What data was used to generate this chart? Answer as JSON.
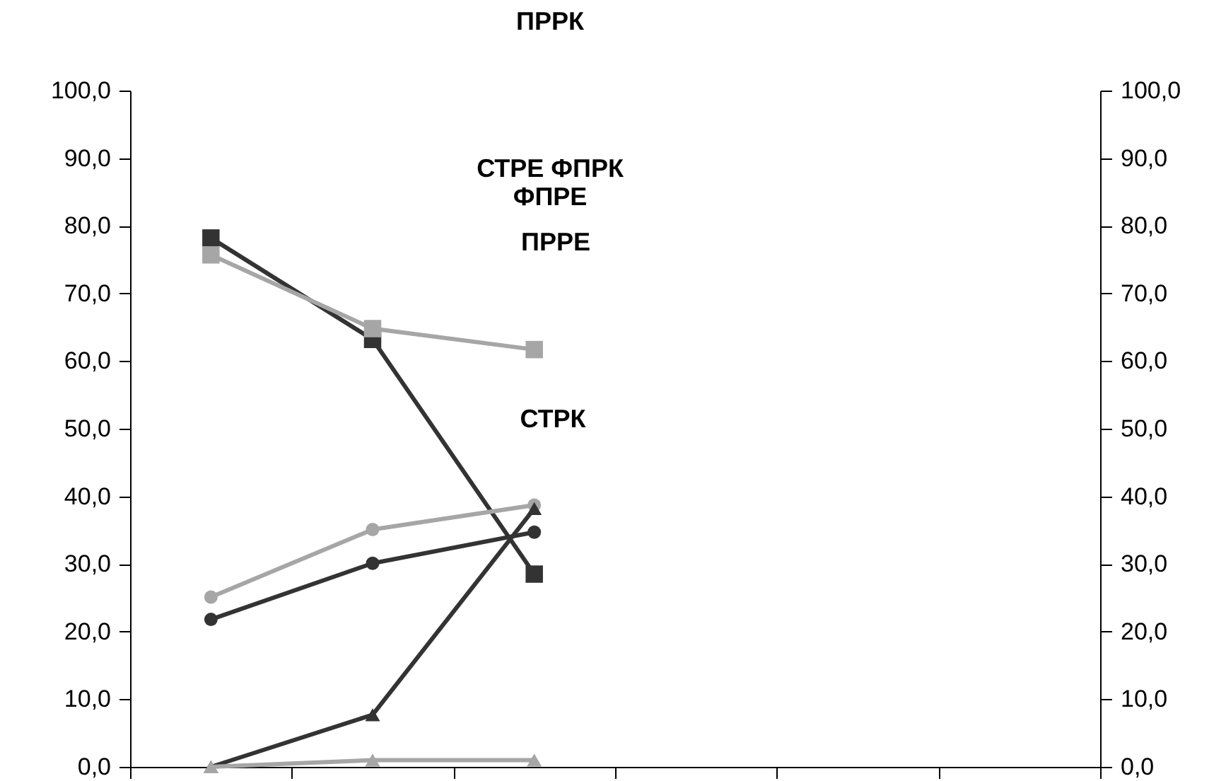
{
  "chart_data": {
    "type": "line",
    "title": "ПРРК",
    "categories": [
      null,
      null,
      null,
      null,
      null,
      null
    ],
    "series": [
      {
        "color": "#333333",
        "marker": "square",
        "values": [
          78.2,
          63.2,
          28.5,
          null,
          null,
          null
        ]
      },
      {
        "color": "#a6a6a6",
        "marker": "square",
        "values": [
          75.7,
          64.8,
          61.7,
          null,
          null,
          null
        ]
      },
      {
        "color": "#a6a6a6",
        "marker": "circle",
        "values": [
          25.1,
          35.1,
          38.7,
          null,
          null,
          null
        ]
      },
      {
        "color": "#333333",
        "marker": "circle",
        "values": [
          21.8,
          30.1,
          34.7,
          null,
          null,
          null
        ]
      },
      {
        "color": "#333333",
        "marker": "triangle",
        "values": [
          0,
          7.7,
          38.2,
          null,
          null,
          null
        ]
      },
      {
        "color": "#a6a6a6",
        "marker": "triangle",
        "values": [
          0,
          1,
          1,
          null,
          null,
          null
        ]
      }
    ],
    "ylim": [
      0,
      100
    ],
    "yticks": [
      {
        "value": 0,
        "label": "0,0"
      },
      {
        "value": 10,
        "label": "10,0"
      },
      {
        "value": 20,
        "label": "20,0"
      },
      {
        "value": 30,
        "label": "30,0"
      },
      {
        "value": 40,
        "label": "40,0"
      },
      {
        "value": 50,
        "label": "50,0"
      },
      {
        "value": 60,
        "label": "60,0"
      },
      {
        "value": 70,
        "label": "70,0"
      },
      {
        "value": 80,
        "label": "80,0"
      },
      {
        "value": 90,
        "label": "90,0"
      },
      {
        "value": 100,
        "label": "100,0"
      }
    ],
    "y2lim": [
      0,
      100
    ],
    "y2ticks": [
      {
        "value": 0,
        "label": "0,0"
      },
      {
        "value": 10,
        "label": "10,0"
      },
      {
        "value": 20,
        "label": "20,0"
      },
      {
        "value": 30,
        "label": "30,0"
      },
      {
        "value": 40,
        "label": "40,0"
      },
      {
        "value": 50,
        "label": "50,0"
      },
      {
        "value": 60,
        "label": "60,0"
      },
      {
        "value": 70,
        "label": "70,0"
      },
      {
        "value": 80,
        "label": "80,0"
      },
      {
        "value": 90,
        "label": "90,0"
      },
      {
        "value": 100,
        "label": "100,0"
      }
    ],
    "annotations": [
      "СТРЕ ФПРК",
      "ФПРЕ",
      "ПРРЕ",
      "СТРК"
    ]
  }
}
